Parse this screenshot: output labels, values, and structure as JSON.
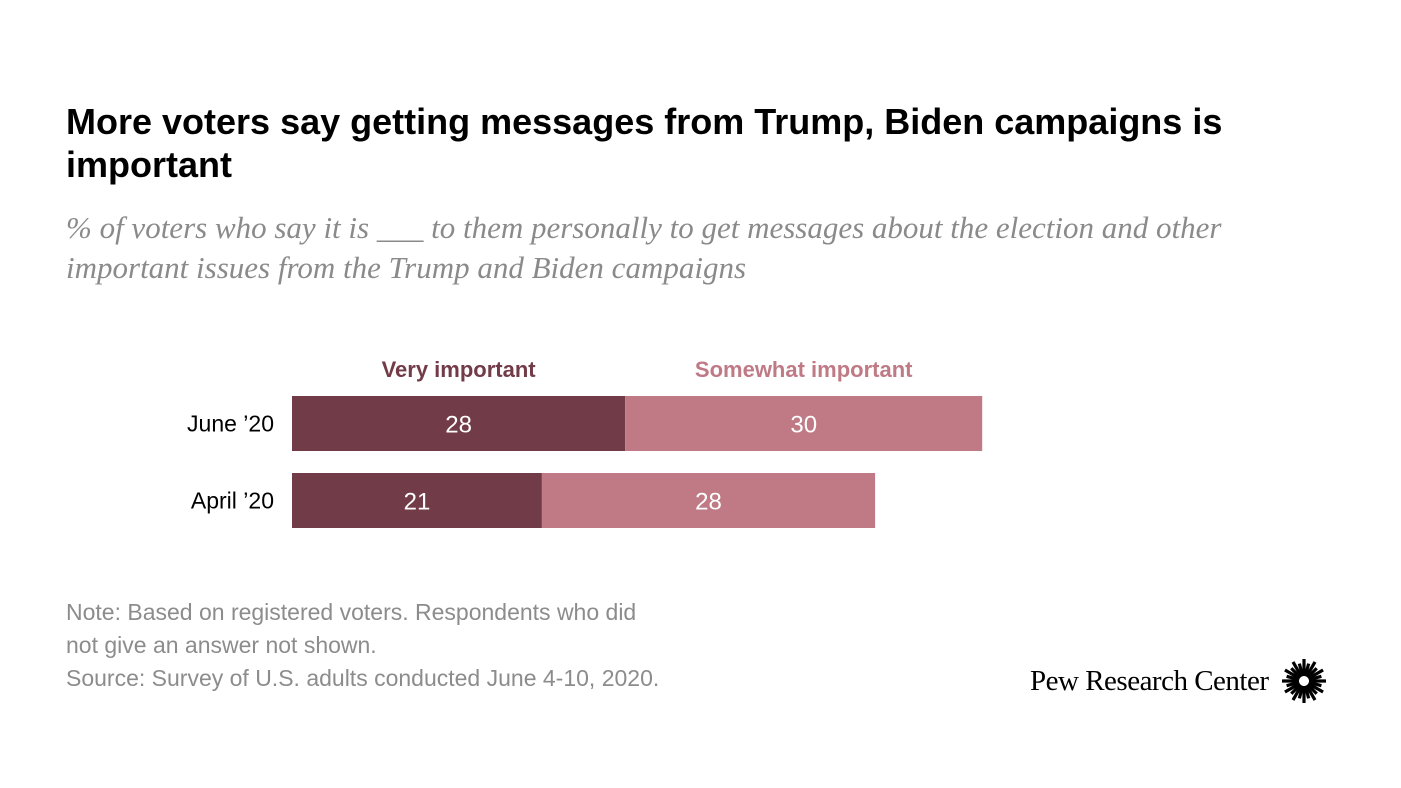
{
  "title": "More voters say getting messages from Trump, Biden campaigns is important",
  "subtitle": "% of voters who say it is ___ to them personally to get messages about the election and other important issues from the Trump and Biden campaigns",
  "colors": {
    "very": "#723b48",
    "somewhat": "#bf7a86",
    "very_label": "#723b48",
    "somewhat_label": "#bf7a86",
    "value_text": "#ffffff",
    "category_text": "#000000"
  },
  "chart_data": {
    "type": "bar",
    "orientation": "horizontal",
    "stacked": true,
    "categories": [
      "June ’20",
      "April ’20"
    ],
    "series": [
      {
        "name": "Very important",
        "values": [
          28,
          21
        ]
      },
      {
        "name": "Somewhat important",
        "values": [
          30,
          28
        ]
      }
    ],
    "value_labels": true,
    "legend": "top"
  },
  "notes": [
    "Note: Based on registered voters. Respondents who did",
    "not give an answer not shown.",
    "Source: Survey of U.S. adults conducted June 4-10, 2020."
  ],
  "branding": {
    "name": "Pew Research Center",
    "icon": "pew-sunburst-icon"
  }
}
